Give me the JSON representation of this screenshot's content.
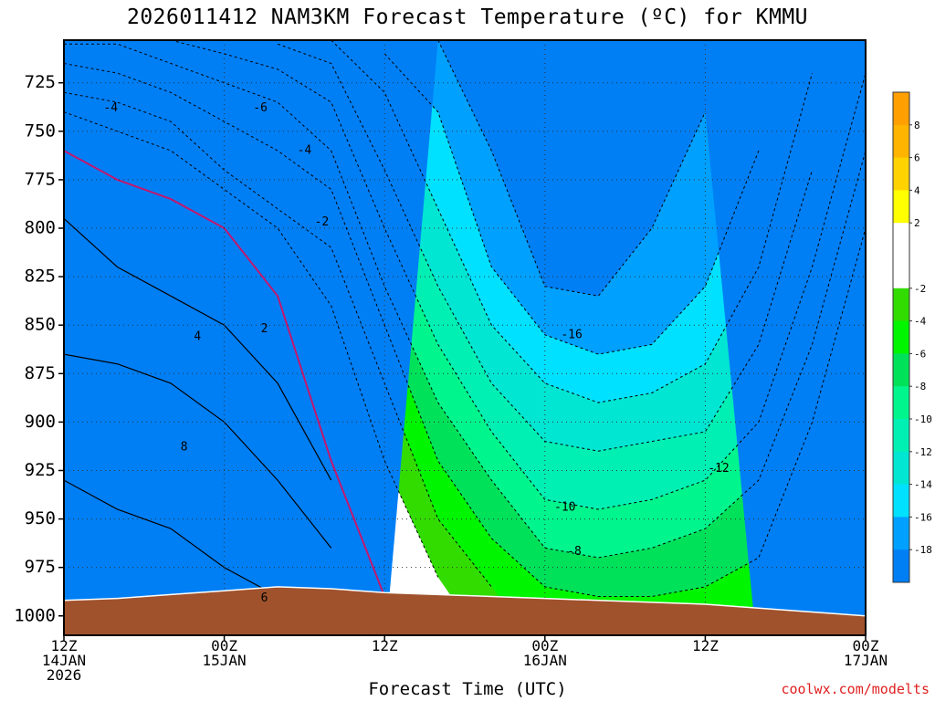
{
  "colors": {
    "frame": "#000000",
    "ground": "#a0522d",
    "zero_isotherm": "#c2186e",
    "credit": "#e02020"
  },
  "chart_data": {
    "type": "filled-contour (time-height cross section)",
    "title": "2026011412 NAM3KM Forecast Temperature (ºC) for KMMU",
    "xlabel": "Forecast Time (UTC)",
    "credit": "coolwx.com/modelts",
    "x_ticks": [
      {
        "line1": "12Z",
        "line2": "14JAN",
        "line3": "2026"
      },
      {
        "line1": "00Z",
        "line2": "15JAN",
        "line3": ""
      },
      {
        "line1": "12Z",
        "line2": "",
        "line3": ""
      },
      {
        "line1": "00Z",
        "line2": "16JAN",
        "line3": ""
      },
      {
        "line1": "12Z",
        "line2": "",
        "line3": ""
      },
      {
        "line1": "00Z",
        "line2": "17JAN",
        "line3": ""
      }
    ],
    "x_hours": [
      0,
      12,
      24,
      36,
      48,
      60
    ],
    "xlim_hours": [
      0,
      60
    ],
    "y_ticks": [
      725,
      750,
      775,
      800,
      825,
      850,
      875,
      900,
      925,
      950,
      975,
      1000
    ],
    "ylim_hpa": [
      703,
      1010
    ],
    "grid": true,
    "colorbar": {
      "placement": "right",
      "labels": [
        "8",
        "6",
        "4",
        "2",
        "-2",
        "-4",
        "-6",
        "-8",
        "-10",
        "-12",
        "-14",
        "-16",
        "-18"
      ],
      "bins": [
        {
          "lo": 8,
          "hi": 10,
          "color": "#ff9f00"
        },
        {
          "lo": 6,
          "hi": 8,
          "color": "#ffb400"
        },
        {
          "lo": 4,
          "hi": 6,
          "color": "#ffd200"
        },
        {
          "lo": 2,
          "hi": 4,
          "color": "#ffff00"
        },
        {
          "lo": 0,
          "hi": 2,
          "color": "#ffffff"
        },
        {
          "lo": -2,
          "hi": 0,
          "color": "#ffffff"
        },
        {
          "lo": -4,
          "hi": -2,
          "color": "#32dc00"
        },
        {
          "lo": -6,
          "hi": -4,
          "color": "#00f500"
        },
        {
          "lo": -8,
          "hi": -6,
          "color": "#00e15a"
        },
        {
          "lo": -10,
          "hi": -8,
          "color": "#00f58c"
        },
        {
          "lo": -12,
          "hi": -10,
          "color": "#00f0b4"
        },
        {
          "lo": -14,
          "hi": -12,
          "color": "#00e6d2"
        },
        {
          "lo": -16,
          "hi": -14,
          "color": "#00e1ff"
        },
        {
          "lo": -18,
          "hi": -16,
          "color": "#00a0ff"
        },
        {
          "lo": -20,
          "hi": -18,
          "color": "#007ff5"
        }
      ]
    },
    "contour_labels": [
      {
        "text": "-4",
        "hour": 3.5,
        "hpa": 738
      },
      {
        "text": "-6",
        "hour": 14.7,
        "hpa": 738
      },
      {
        "text": "-4",
        "hour": 18.0,
        "hpa": 760
      },
      {
        "text": "-2",
        "hour": 19.3,
        "hpa": 797
      },
      {
        "text": "2",
        "hour": 15.0,
        "hpa": 852
      },
      {
        "text": "4",
        "hour": 10.0,
        "hpa": 856
      },
      {
        "text": "8",
        "hour": 9.0,
        "hpa": 913
      },
      {
        "text": "6",
        "hour": 15.0,
        "hpa": 991
      },
      {
        "text": "-16",
        "hour": 38.0,
        "hpa": 855
      },
      {
        "text": "-12",
        "hour": 49.0,
        "hpa": 924
      },
      {
        "text": "-10",
        "hour": 37.5,
        "hpa": 944
      },
      {
        "text": "-8",
        "hour": 38.2,
        "hpa": 967
      }
    ],
    "temperature_profile_note": "approx. isotherm pressure (hPa) at each forecast hour",
    "isotherm_hours": [
      0,
      4,
      8,
      12,
      16,
      20,
      24,
      28,
      32,
      36,
      40,
      44,
      48,
      52,
      56,
      60
    ],
    "isotherms_hpa": {
      "6": [
        930,
        945,
        955,
        975,
        990,
        null,
        null,
        null,
        null,
        null,
        null,
        null,
        null,
        null,
        null,
        null
      ],
      "4": [
        865,
        870,
        880,
        900,
        930,
        965,
        null,
        null,
        null,
        null,
        null,
        null,
        null,
        null,
        null,
        null
      ],
      "2": [
        795,
        820,
        835,
        850,
        880,
        930,
        null,
        null,
        null,
        null,
        null,
        null,
        null,
        null,
        null,
        null
      ],
      "0": [
        760,
        775,
        785,
        800,
        835,
        920,
        990,
        null,
        null,
        null,
        null,
        null,
        null,
        null,
        null,
        null
      ],
      "-2": [
        740,
        750,
        760,
        780,
        800,
        840,
        920,
        980,
        null,
        null,
        null,
        null,
        null,
        null,
        null,
        null
      ],
      "-4": [
        730,
        735,
        745,
        770,
        790,
        810,
        880,
        950,
        985,
        null,
        null,
        null,
        null,
        null,
        null,
        null
      ],
      "-6": [
        715,
        720,
        730,
        745,
        760,
        780,
        850,
        920,
        960,
        985,
        990,
        990,
        985,
        970,
        900,
        800
      ],
      "-8": [
        705,
        705,
        715,
        725,
        735,
        760,
        830,
        890,
        930,
        965,
        970,
        965,
        955,
        930,
        860,
        760
      ],
      "-10": [
        null,
        null,
        703,
        710,
        718,
        735,
        800,
        860,
        905,
        940,
        945,
        940,
        930,
        900,
        820,
        720
      ],
      "-12": [
        null,
        null,
        null,
        null,
        705,
        715,
        770,
        830,
        880,
        910,
        915,
        910,
        905,
        860,
        770,
        null
      ],
      "-14": [
        null,
        null,
        null,
        null,
        null,
        703,
        730,
        790,
        850,
        880,
        890,
        885,
        870,
        820,
        720,
        null
      ],
      "-16": [
        null,
        null,
        null,
        null,
        null,
        null,
        710,
        740,
        820,
        855,
        865,
        860,
        830,
        760,
        null,
        null
      ],
      "-18": [
        null,
        null,
        null,
        null,
        null,
        null,
        null,
        703,
        760,
        830,
        835,
        800,
        740,
        null,
        null,
        null
      ]
    },
    "surface_hpa": [
      992,
      991,
      989,
      987,
      985,
      986,
      988,
      989,
      990,
      991,
      992,
      993,
      994,
      996,
      998,
      1000
    ]
  }
}
